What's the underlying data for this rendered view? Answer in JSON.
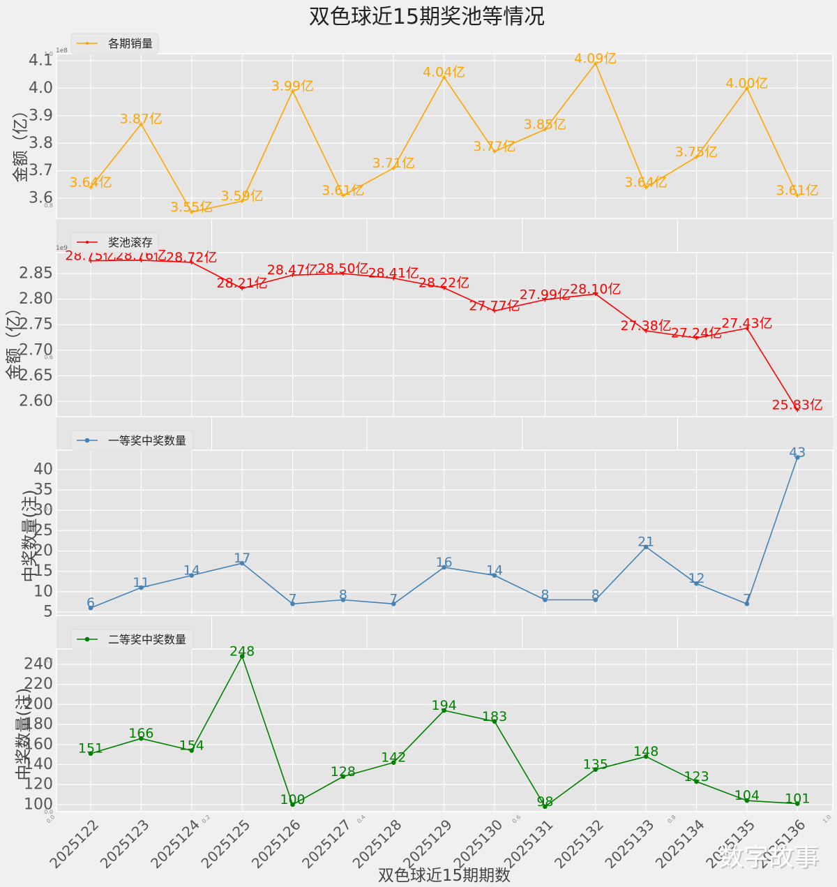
{
  "title": "双色球近15期奖池等情况",
  "watermark": "数字故事",
  "chart_data": {
    "type": "line",
    "title": "双色球近15期奖池等情况",
    "xlabel": "双色球近15期期数",
    "grid": true,
    "categories": [
      "2025122",
      "2025123",
      "2025124",
      "2025125",
      "2025126",
      "2025127",
      "2025128",
      "2025129",
      "2025130",
      "2025131",
      "2025132",
      "2025133",
      "2025134",
      "2025135",
      "2025136"
    ],
    "subplots": [
      {
        "series_name": "各期销量",
        "legend": "各期销量",
        "legend_position": "upper-left",
        "ylabel": "金额（亿）",
        "color": "#FFA500",
        "marker": "star",
        "value_unit": "亿",
        "axis_divisor": 1,
        "offset_text": "1e8",
        "values": [
          3.64,
          3.87,
          3.55,
          3.59,
          3.99,
          3.61,
          3.71,
          4.04,
          3.77,
          3.85,
          4.09,
          3.64,
          3.75,
          4.0,
          3.61
        ],
        "data_labels": [
          "3.64亿",
          "3.87亿",
          "3.55亿",
          "3.59亿",
          "3.99亿",
          "3.61亿",
          "3.71亿",
          "4.04亿",
          "3.77亿",
          "3.85亿",
          "4.09亿",
          "3.64亿",
          "3.75亿",
          "4.00亿",
          "3.61亿"
        ],
        "ylim": [
          3.527,
          4.125
        ],
        "yticks": [
          3.6,
          3.7,
          3.8,
          3.9,
          4.0,
          4.1
        ],
        "ytick_labels": [
          "3.6",
          "3.7",
          "3.8",
          "3.9",
          "4.0",
          "4.1"
        ]
      },
      {
        "series_name": "奖池滚存",
        "legend": "奖池滚存",
        "legend_position": "upper-left",
        "ylabel": "金额（亿）",
        "color": "#FF0000",
        "marker": "plus",
        "value_unit": "亿",
        "axis_divisor": 10,
        "offset_text": "1e9",
        "values": [
          28.75,
          28.76,
          28.72,
          28.21,
          28.47,
          28.5,
          28.41,
          28.22,
          27.77,
          27.99,
          28.1,
          27.38,
          27.24,
          27.43,
          25.83
        ],
        "data_labels": [
          "28.75亿",
          "28.76亿",
          "28.72亿",
          "28.21亿",
          "28.47亿",
          "28.50亿",
          "28.41亿",
          "28.22亿",
          "27.77亿",
          "27.99亿",
          "28.10亿",
          "27.38亿",
          "27.24亿",
          "27.43亿",
          "25.83亿"
        ],
        "ylim": [
          2.57,
          2.891
        ],
        "yticks": [
          2.6,
          2.65,
          2.7,
          2.75,
          2.8,
          2.85
        ],
        "ytick_labels": [
          "2.60",
          "2.65",
          "2.70",
          "2.75",
          "2.80",
          "2.85"
        ]
      },
      {
        "series_name": "一等奖中奖数量",
        "legend": "一等奖中奖数量",
        "legend_position": "upper-left",
        "ylabel": "中奖数量(注)",
        "color": "#4682B4",
        "marker": "circle",
        "value_unit": "注",
        "axis_divisor": 1,
        "offset_text": "",
        "values": [
          6,
          11,
          14,
          17,
          7,
          8,
          7,
          16,
          14,
          8,
          8,
          21,
          12,
          7,
          43
        ],
        "data_labels": [
          "6",
          "11",
          "14",
          "17",
          "7",
          "8",
          "7",
          "16",
          "14",
          "8",
          "8",
          "21",
          "12",
          "7",
          "43"
        ],
        "ylim": [
          4.14,
          44.8
        ],
        "yticks": [
          5,
          10,
          15,
          20,
          25,
          30,
          35,
          40
        ],
        "ytick_labels": [
          "5",
          "10",
          "15",
          "20",
          "25",
          "30",
          "35",
          "40"
        ]
      },
      {
        "series_name": "二等奖中奖数量",
        "legend": "二等奖中奖数量",
        "legend_position": "upper-left",
        "ylabel": "中奖数量(注)",
        "color": "#008000",
        "marker": "circle",
        "value_unit": "注",
        "axis_divisor": 1,
        "offset_text": "",
        "values": [
          151,
          166,
          154,
          248,
          100,
          128,
          142,
          194,
          183,
          98,
          135,
          148,
          123,
          104,
          101
        ],
        "data_labels": [
          "151",
          "166",
          "154",
          "248",
          "100",
          "128",
          "142",
          "194",
          "183",
          "98",
          "135",
          "148",
          "123",
          "104",
          "101"
        ],
        "ylim": [
          93.0,
          255.3
        ],
        "yticks": [
          100,
          120,
          140,
          160,
          180,
          200,
          220,
          240
        ],
        "ytick_labels": [
          "100",
          "120",
          "140",
          "160",
          "180",
          "200",
          "220",
          "240"
        ]
      }
    ],
    "background_axes": {
      "xlim": [
        0,
        1
      ],
      "ylim": [
        0,
        1
      ],
      "grid_positions": [
        0.2,
        0.4,
        0.6,
        0.8
      ],
      "tick_positions": [
        0.0,
        0.2,
        0.4,
        0.6,
        0.8,
        1.0
      ],
      "xtick_labels": [
        "0.0",
        "0.2",
        "0.4",
        "0.6",
        "0.8",
        "1.0"
      ],
      "ytick_labels": [
        "0.0",
        "0.2",
        "0.4",
        "0.6",
        "0.8",
        "1.0"
      ]
    }
  }
}
